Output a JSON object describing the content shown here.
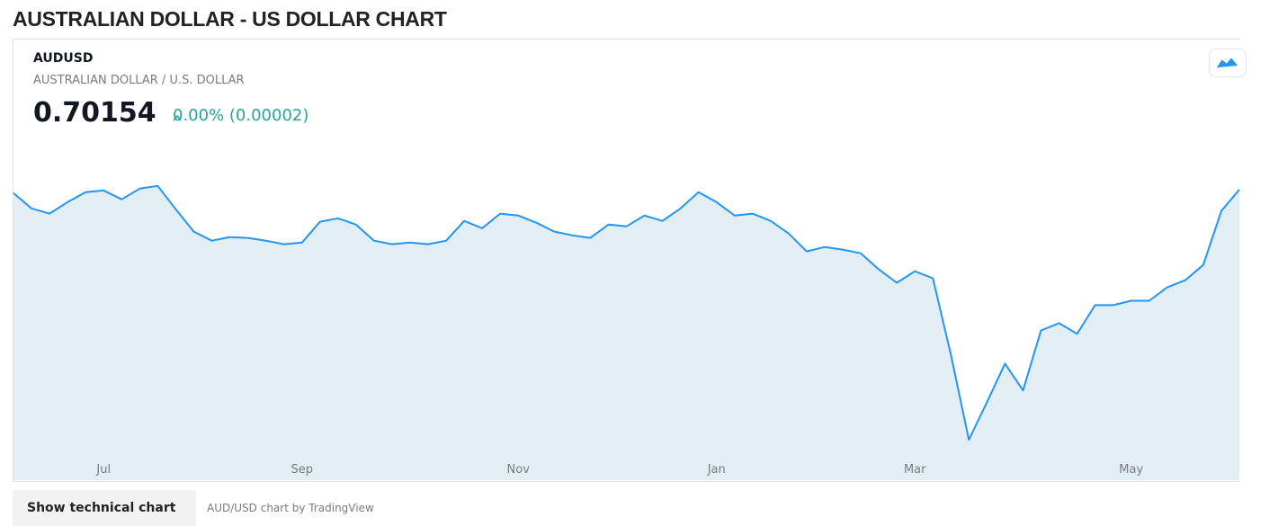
{
  "header": {
    "title": "AUSTRALIAN DOLLAR - US DOLLAR CHART"
  },
  "quote": {
    "symbol": "AUDUSD",
    "description": "AUSTRALIAN DOLLAR / U.S. DOLLAR",
    "price": "0.70154",
    "change": "0.00% (0.00002)"
  },
  "chart_data": {
    "type": "area",
    "categories": [
      null,
      null,
      null,
      null,
      null,
      "Jul",
      null,
      null,
      null,
      null,
      null,
      null,
      null,
      null,
      null,
      null,
      "Sep",
      null,
      null,
      null,
      null,
      null,
      null,
      null,
      null,
      null,
      null,
      null,
      "Nov",
      null,
      null,
      null,
      null,
      null,
      null,
      null,
      null,
      null,
      null,
      "Jan",
      null,
      null,
      null,
      null,
      null,
      null,
      null,
      null,
      null,
      null,
      "Mar",
      null,
      null,
      null,
      null,
      null,
      null,
      null,
      null,
      null,
      null,
      null,
      "May",
      null,
      null,
      null,
      null,
      null,
      null
    ],
    "values": [
      0.6998,
      0.6922,
      0.6896,
      0.6953,
      0.7002,
      0.7011,
      0.6967,
      0.702,
      0.7033,
      0.6918,
      0.6807,
      0.6762,
      0.678,
      0.6776,
      0.6762,
      0.6745,
      0.6753,
      0.6856,
      0.6873,
      0.6842,
      0.6762,
      0.6745,
      0.6753,
      0.6745,
      0.6762,
      0.686,
      0.6824,
      0.6896,
      0.6887,
      0.6851,
      0.6807,
      0.6789,
      0.6776,
      0.6842,
      0.6833,
      0.6887,
      0.686,
      0.6922,
      0.7002,
      0.6953,
      0.6887,
      0.6896,
      0.686,
      0.6798,
      0.6709,
      0.6731,
      0.6718,
      0.67,
      0.662,
      0.6554,
      0.6611,
      0.6576,
      0.6198,
      0.5777,
      0.5963,
      0.6154,
      0.6021,
      0.6318,
      0.6354,
      0.6301,
      0.6443,
      0.6443,
      0.6465,
      0.6465,
      0.6531,
      0.6567,
      0.6642,
      0.6909,
      0.7015
    ],
    "color": "#2196f3",
    "fill": "#e3edf4",
    "ylim": [
      0.5577,
      0.7286
    ]
  },
  "footer": {
    "button": "Show technical chart",
    "credit": "AUD/USD chart by TradingView"
  }
}
